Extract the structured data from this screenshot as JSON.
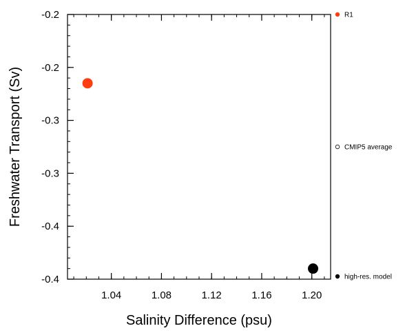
{
  "chart_data": {
    "type": "scatter",
    "xlabel": "Salinity Difference (psu)",
    "ylabel": "Freshwater Transport (Sv)",
    "xlim": [
      1.005,
      1.215
    ],
    "ylim": [
      -0.4,
      -0.15
    ],
    "x_ticks": [
      1.04,
      1.08,
      1.12,
      1.16,
      1.2
    ],
    "x_tick_labels": [
      "1.04",
      "1.08",
      "1.12",
      "1.16",
      "1.20"
    ],
    "y_ticks": [
      -0.15,
      -0.2,
      -0.25,
      -0.3,
      -0.35,
      -0.4
    ],
    "y_tick_labels": [
      "-0.2",
      "-0.2",
      "-0.3",
      "-0.3",
      "-0.4",
      "-0.4"
    ],
    "grid": false,
    "legend_position": "right",
    "series": [
      {
        "name": "R1",
        "color": "#ff3d0f",
        "marker": "filled-circle",
        "x": [
          1.021
        ],
        "y": [
          -0.215
        ]
      },
      {
        "name": "CMIP5 average",
        "color": "#000000",
        "marker": "open-circle",
        "x": [],
        "y": []
      },
      {
        "name": "high-res. model",
        "color": "#000000",
        "marker": "filled-circle",
        "x": [
          1.201
        ],
        "y": [
          -0.39
        ]
      }
    ]
  }
}
